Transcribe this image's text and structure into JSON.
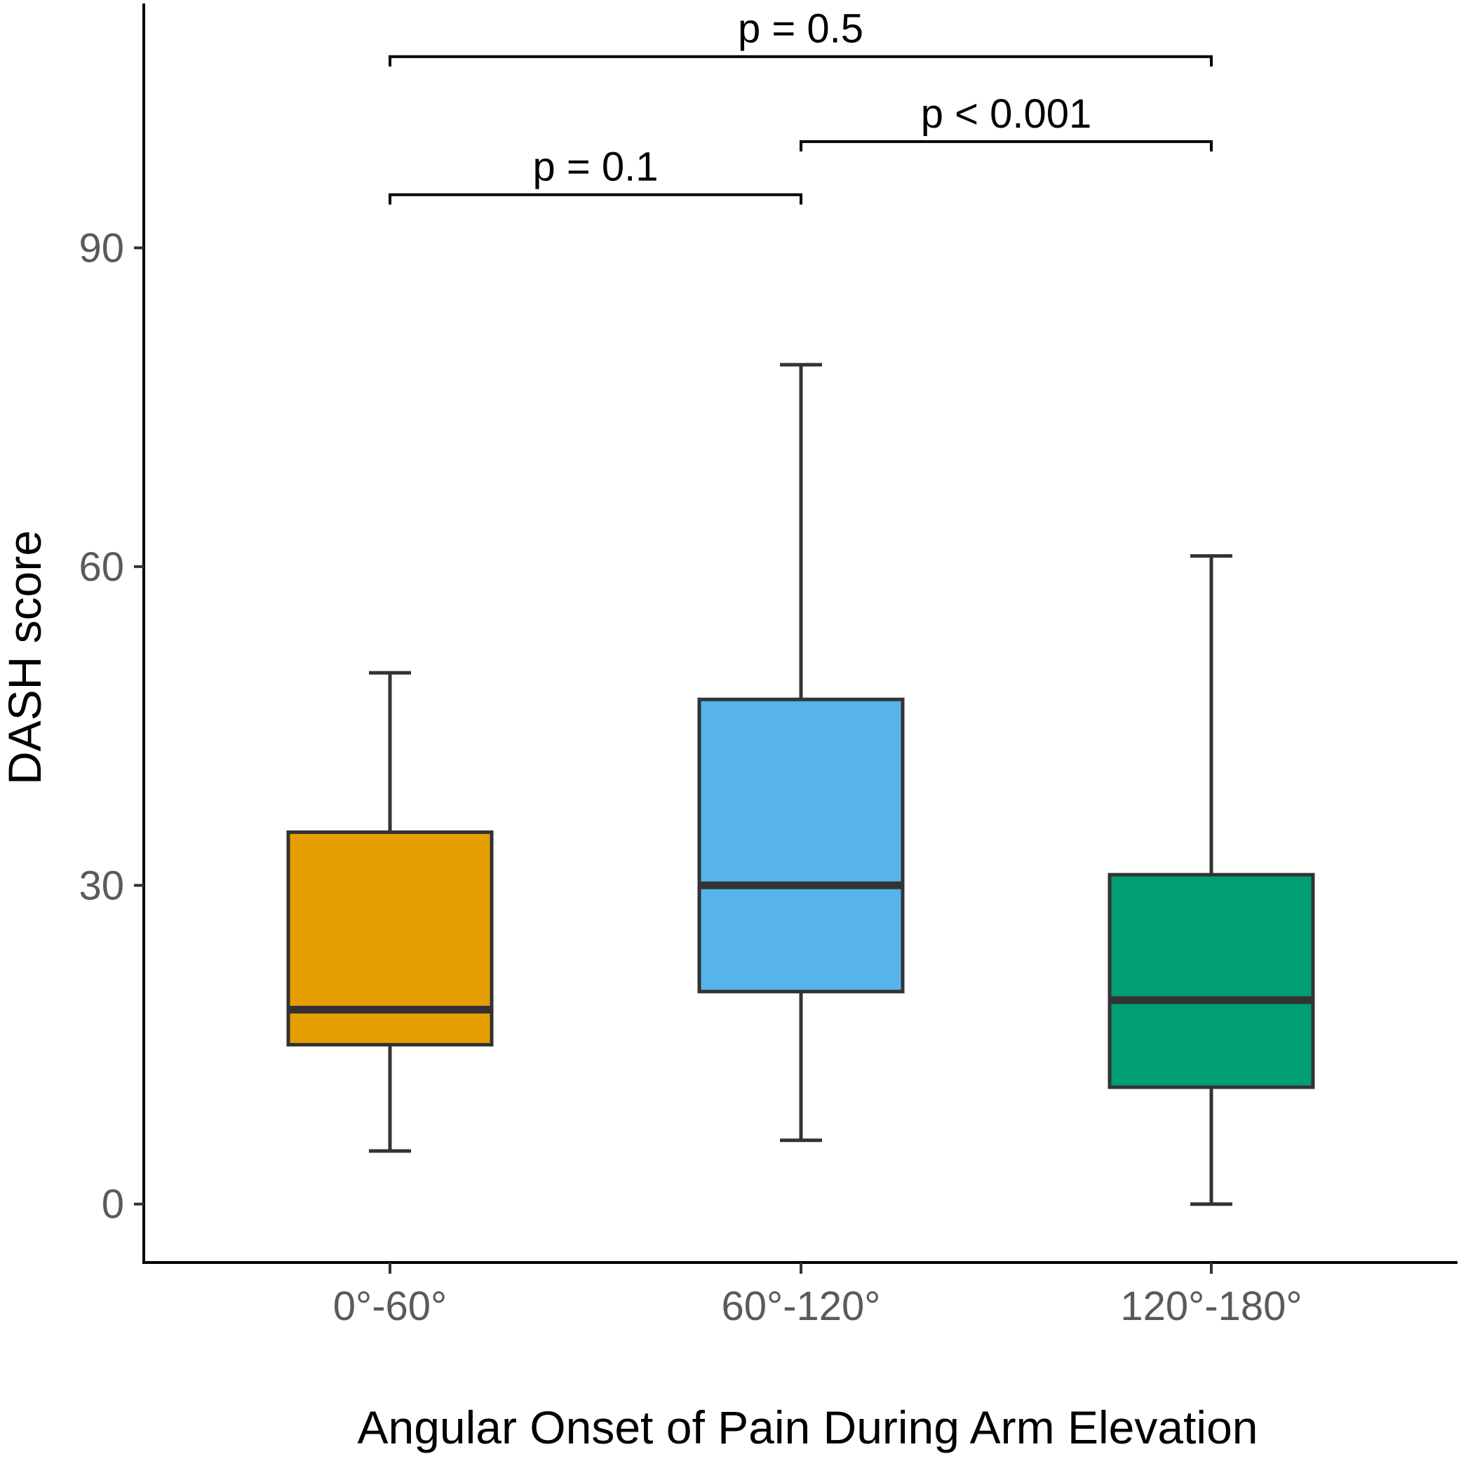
{
  "chart_data": {
    "type": "box",
    "xlabel": "Angular Onset of Pain During Arm Elevation",
    "ylabel": "DASH score",
    "categories": [
      "0°-60°",
      "60°-120°",
      "120°-180°"
    ],
    "y_ticks": [
      0,
      30,
      60,
      90
    ],
    "y_tick_labels": [
      "0",
      "30",
      "60",
      "90"
    ],
    "ylim": [
      -5.5,
      113
    ],
    "boxes": [
      {
        "category": "0°-60°",
        "whisker_low": 5,
        "q1": 15,
        "median": 18.3,
        "q3": 35,
        "whisker_high": 50,
        "color": "#E69F00"
      },
      {
        "category": "60°-120°",
        "whisker_low": 6,
        "q1": 20,
        "median": 30,
        "q3": 47.5,
        "whisker_high": 79,
        "color": "#56B4E9"
      },
      {
        "category": "120°-180°",
        "whisker_low": 0,
        "q1": 11,
        "median": 19.2,
        "q3": 31,
        "whisker_high": 61,
        "color": "#009E73"
      }
    ],
    "comparisons": [
      {
        "from": 0,
        "to": 1,
        "label": "p = 0.1",
        "y": 95
      },
      {
        "from": 1,
        "to": 2,
        "label": "p < 0.001",
        "y": 100
      },
      {
        "from": 0,
        "to": 2,
        "label": "p = 0.5",
        "y": 108
      }
    ]
  }
}
